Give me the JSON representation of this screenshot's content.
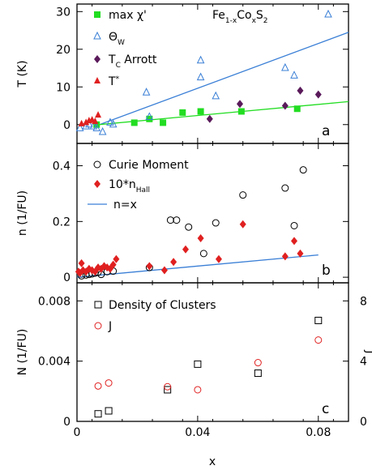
{
  "figure": {
    "xlabel": "x",
    "xticks": [
      "0",
      "0.04",
      "0.08"
    ]
  },
  "chart_data": [
    {
      "panel": "a",
      "type": "scatter",
      "ylabel": "T (K)",
      "xlim": [
        0,
        0.09
      ],
      "ylim": [
        -5,
        32
      ],
      "xticks": [
        0,
        0.04,
        0.08
      ],
      "yticks": [
        0,
        10,
        20,
        30
      ],
      "compound": {
        "base": "Fe",
        "s1": "1-x",
        "mid": "Co",
        "s2": "x",
        "tail": "S",
        "s3": "2"
      },
      "series": [
        {
          "name": "max χ'",
          "marker": "filled-square",
          "color": "#22dd22",
          "x": [
            0.0065,
            0.019,
            0.024,
            0.0285,
            0.035,
            0.041,
            0.0545,
            0.073
          ],
          "y": [
            0,
            0.5,
            1.5,
            0.5,
            3.2,
            3.5,
            3.5,
            4.2
          ]
        },
        {
          "name": "Θ",
          "sub": "W",
          "marker": "open-triangle",
          "color": "#3a7fd6",
          "x": [
            0.001,
            0.003,
            0.004,
            0.0055,
            0.0065,
            0.0085,
            0.011,
            0.012,
            0.023,
            0.024,
            0.041,
            0.041,
            0.046,
            0.069,
            0.072
          ],
          "y": [
            -1,
            -0.5,
            0,
            -0.5,
            -1,
            -2,
            0.5,
            0,
            8.5,
            2,
            17,
            12.5,
            7.5,
            15,
            13
          ]
        },
        {
          "name": "T",
          "sub": "C",
          "suffix": " Arrott",
          "marker": "filled-diamond",
          "color": "#5a1a5a",
          "x": [
            0.044,
            0.054,
            0.069,
            0.074,
            0.08
          ],
          "y": [
            1.5,
            5.5,
            5,
            9,
            8
          ]
        },
        {
          "name": "T",
          "sup": "*",
          "marker": "filled-triangle",
          "color": "#e02020",
          "x": [
            0.0015,
            0.003,
            0.004,
            0.005,
            0.006,
            0.007
          ],
          "y": [
            0.2,
            0.5,
            1,
            1.2,
            0.8,
            2.5
          ]
        }
      ],
      "lines": [
        {
          "color": "#3a7fd6",
          "x": [
            0.0075,
            0.09
          ],
          "y": [
            0,
            24.5
          ]
        },
        {
          "color": "#22dd22",
          "x": [
            0.006,
            0.09
          ],
          "y": [
            -0.1,
            6.1
          ]
        }
      ],
      "panel_label": "a"
    },
    {
      "panel": "b",
      "type": "scatter",
      "ylabel": "n (1/FU)",
      "xlim": [
        0,
        0.09
      ],
      "ylim": [
        -0.02,
        0.48
      ],
      "xticks": [
        0,
        0.04,
        0.08
      ],
      "yticks": [
        0,
        0.2,
        0.4
      ],
      "yticklabels": [
        "0",
        "0.2",
        "0.4"
      ],
      "series": [
        {
          "name": "Curie Moment",
          "marker": "open-circle",
          "color": "#000000",
          "x": [
            0.0015,
            0.003,
            0.004,
            0.005,
            0.006,
            0.007,
            0.008,
            0.01,
            0.012,
            0.024,
            0.031,
            0.033,
            0.037,
            0.042,
            0.046,
            0.055,
            0.069,
            0.072,
            0.075
          ],
          "y": [
            0.005,
            0.008,
            0.01,
            0.012,
            0.015,
            0.018,
            0.01,
            0.02,
            0.022,
            0.035,
            0.205,
            0.205,
            0.18,
            0.085,
            0.195,
            0.295,
            0.32,
            0.185,
            0.385
          ]
        },
        {
          "name": "10*n",
          "sub": "Hall",
          "marker": "filled-diamond",
          "color": "#e02020",
          "x": [
            0.0005,
            0.001,
            0.0015,
            0.002,
            0.003,
            0.004,
            0.005,
            0.006,
            0.007,
            0.008,
            0.009,
            0.01,
            0.011,
            0.012,
            0.013,
            0.024,
            0.029,
            0.032,
            0.036,
            0.041,
            0.047,
            0.055,
            0.069,
            0.072,
            0.074
          ],
          "y": [
            0.02,
            0.015,
            0.05,
            0.025,
            0.02,
            0.03,
            0.025,
            0.02,
            0.035,
            0.03,
            0.04,
            0.035,
            0.03,
            0.045,
            0.065,
            0.04,
            0.025,
            0.055,
            0.1,
            0.14,
            0.065,
            0.19,
            0.075,
            0.13,
            0.085
          ]
        }
      ],
      "lines": [
        {
          "name": "n=x",
          "color": "#3a7fd6",
          "x": [
            0,
            0.08
          ],
          "y": [
            0,
            0.08
          ]
        }
      ],
      "panel_label": "b"
    },
    {
      "panel": "c",
      "type": "scatter",
      "ylabel": "N (1/FU)",
      "y2label": "J",
      "xlim": [
        0,
        0.09
      ],
      "ylim": [
        0,
        0.0092
      ],
      "y2lim": [
        0,
        9.2
      ],
      "xticks": [
        0,
        0.04,
        0.08
      ],
      "yticks": [
        0,
        0.004,
        0.008
      ],
      "yticklabels": [
        "0",
        "0.004",
        "0.008"
      ],
      "y2ticks": [
        0,
        4,
        8
      ],
      "y2ticklabels": [
        "0",
        "4",
        "8"
      ],
      "series": [
        {
          "name": "Density of Clusters",
          "marker": "open-square",
          "color": "#000000",
          "axis": "left",
          "x": [
            0.007,
            0.0105,
            0.03,
            0.04,
            0.06,
            0.08
          ],
          "y": [
            0.0005,
            0.0007,
            0.0021,
            0.0038,
            0.0032,
            0.0067
          ]
        },
        {
          "name": "J",
          "marker": "open-circle",
          "color": "#e02020",
          "axis": "right",
          "x": [
            0.007,
            0.0105,
            0.03,
            0.04,
            0.06,
            0.08
          ],
          "y": [
            2.35,
            2.55,
            2.3,
            2.1,
            3.9,
            5.4
          ]
        }
      ],
      "panel_label": "c"
    }
  ]
}
